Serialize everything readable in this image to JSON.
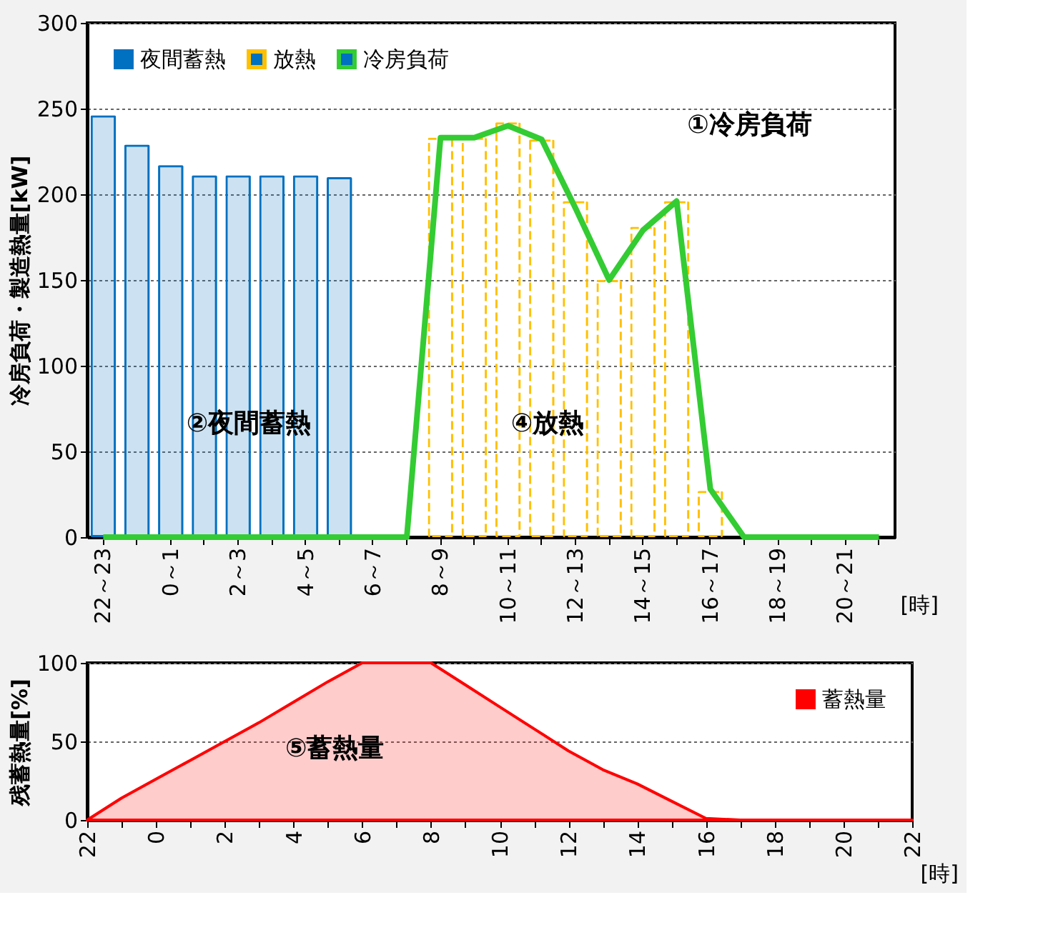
{
  "chart_data": [
    {
      "type": "bar",
      "ylabel": "冷房負荷・製造熱量[kW]",
      "xlabel": "[時]",
      "categories": [
        "22～23",
        null,
        "0～1",
        null,
        "2～3",
        null,
        "4～5",
        null,
        "6～7",
        null,
        "8～9",
        null,
        "10～11",
        null,
        "12～13",
        null,
        "14～15",
        null,
        "16～17",
        null,
        "18～19",
        null,
        "20～21",
        null
      ],
      "series": [
        {
          "name": "夜間蓄熱",
          "type": "bar",
          "color": "#0070c0",
          "values": [
            246,
            229,
            217,
            211,
            211,
            211,
            211,
            210,
            null,
            null,
            null,
            null,
            null,
            null,
            null,
            null,
            null,
            null,
            null,
            null,
            null,
            null,
            null,
            null
          ]
        },
        {
          "name": "放熱",
          "type": "bar",
          "color": "#ffc000",
          "line_style": "dashed",
          "values": [
            null,
            null,
            null,
            null,
            null,
            null,
            null,
            null,
            null,
            null,
            233,
            233,
            242,
            232,
            196,
            150,
            181,
            196,
            27,
            null,
            null,
            null,
            null,
            null
          ]
        },
        {
          "name": "冷房負荷",
          "type": "line",
          "color": "#33cc33",
          "values": [
            0,
            0,
            0,
            0,
            0,
            0,
            0,
            0,
            0,
            0,
            233,
            233,
            240,
            232,
            192,
            150,
            179,
            196,
            28,
            0,
            0,
            0,
            0,
            0
          ]
        }
      ],
      "ylim": [
        0,
        300
      ],
      "yticks": [
        0,
        50,
        100,
        150,
        200,
        250,
        300
      ],
      "grid": "y",
      "legend": "top left",
      "annotations": [
        "①冷房負荷",
        "②夜間蓄熱",
        "④放熱"
      ]
    },
    {
      "type": "area",
      "ylabel": "残蓄熱量[%]",
      "xlabel": "[時]",
      "categories": [
        "22",
        null,
        "0",
        null,
        "2",
        null,
        "4",
        null,
        "6",
        null,
        "8",
        null,
        "10",
        null,
        "12",
        null,
        "14",
        null,
        "16",
        null,
        "18",
        null,
        "20",
        null,
        "22"
      ],
      "series": [
        {
          "name": "蓄熱量",
          "color": "#ff0000",
          "values": [
            0,
            14,
            26,
            38,
            50,
            62,
            75,
            88,
            100,
            100,
            100,
            86,
            72,
            58,
            44,
            32,
            23,
            12,
            1,
            0,
            0,
            0,
            0,
            0,
            0
          ]
        }
      ],
      "ylim": [
        0,
        100
      ],
      "yticks": [
        0,
        50,
        100
      ],
      "grid": "y",
      "legend": "top right",
      "annotations": [
        "⑤蓄熱量"
      ]
    }
  ]
}
